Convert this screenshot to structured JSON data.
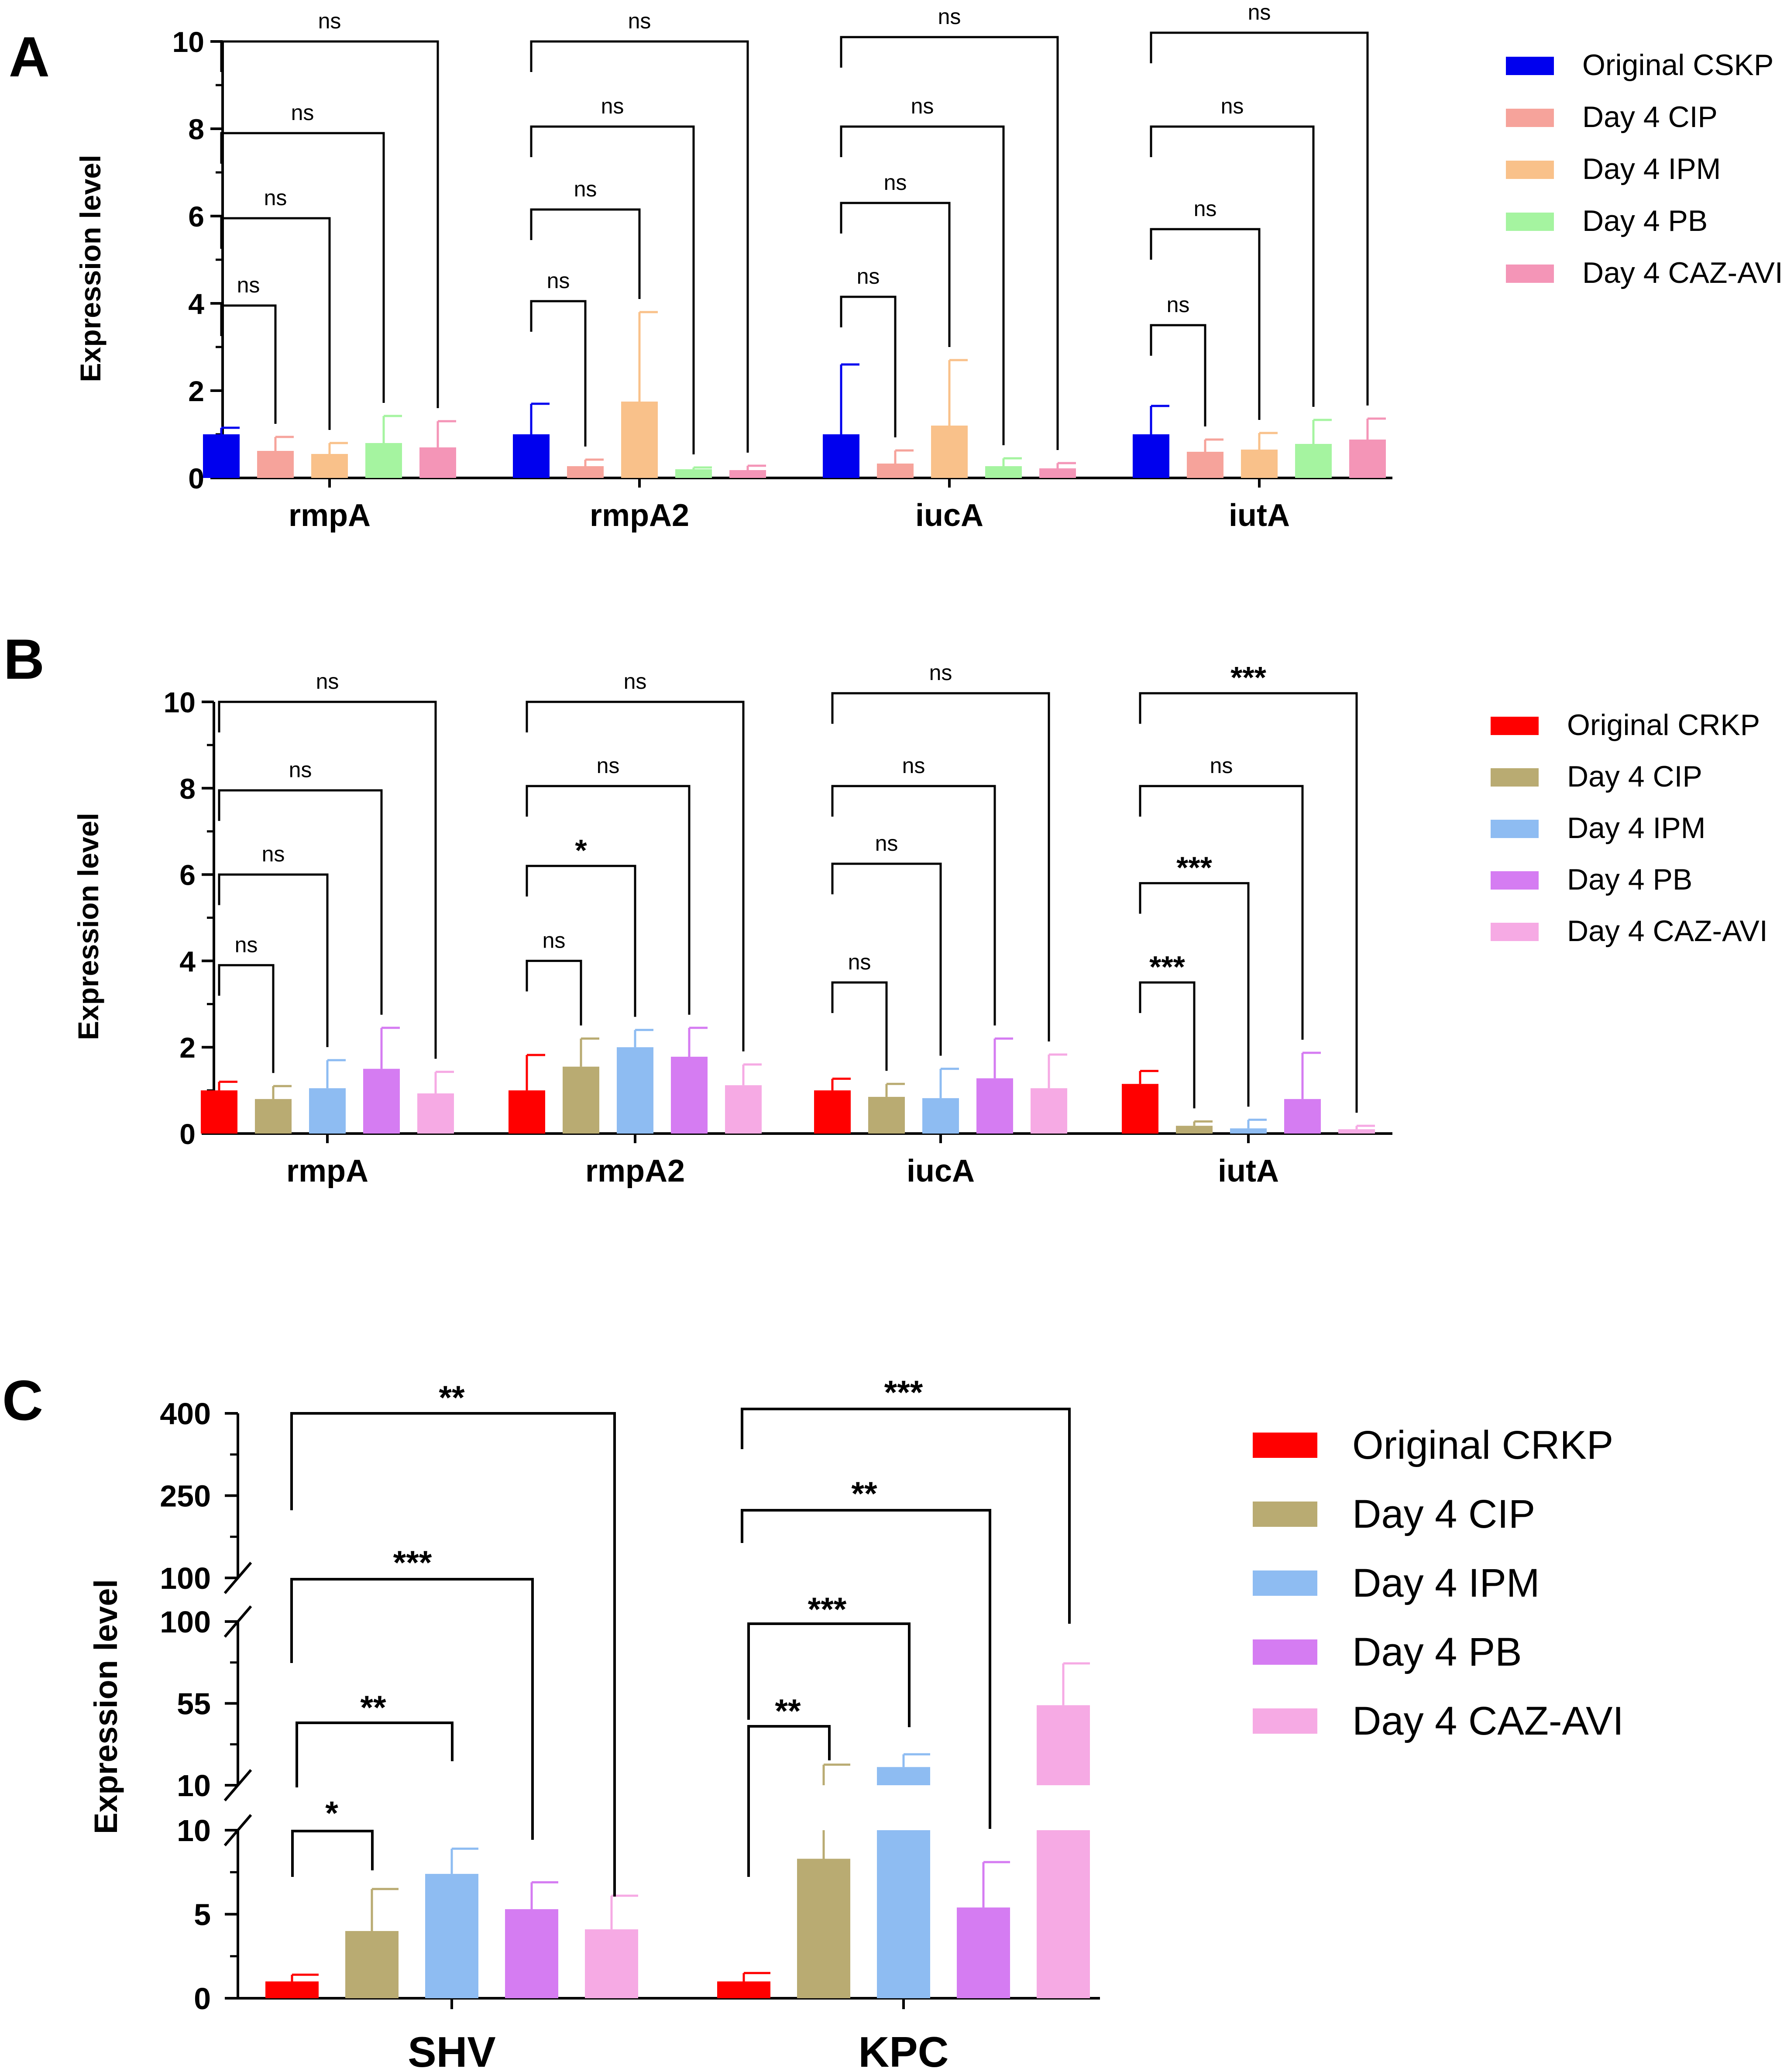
{
  "chart_data": [
    {
      "id": "A",
      "type": "bar",
      "panel_label": "A",
      "ylabel": "Expression level",
      "ylim": [
        0,
        10
      ],
      "yticks": [
        0,
        2,
        4,
        6,
        8,
        10
      ],
      "categories": [
        "rmpA",
        "rmpA2",
        "iucA",
        "iutA"
      ],
      "series": [
        {
          "name": "Original CSKP",
          "color": "#0000ee",
          "values": [
            1.0,
            1.0,
            1.0,
            1.0
          ],
          "errors": [
            0.15,
            0.7,
            1.6,
            0.65
          ]
        },
        {
          "name": "Day 4 CIP",
          "color": "#f6a39b",
          "values": [
            0.62,
            0.27,
            0.33,
            0.6
          ],
          "errors": [
            0.32,
            0.15,
            0.3,
            0.28
          ]
        },
        {
          "name": "Day 4 IPM",
          "color": "#f9c18a",
          "values": [
            0.55,
            1.75,
            1.2,
            0.65
          ],
          "errors": [
            0.25,
            2.05,
            1.5,
            0.38
          ]
        },
        {
          "name": "Day 4 PB",
          "color": "#a5f4a0",
          "values": [
            0.8,
            0.2,
            0.27,
            0.78
          ],
          "errors": [
            0.62,
            0.04,
            0.18,
            0.55
          ]
        },
        {
          "name": "Day 4 CAZ-AVI",
          "color": "#f495b7",
          "values": [
            0.7,
            0.18,
            0.22,
            0.88
          ],
          "errors": [
            0.6,
            0.1,
            0.12,
            0.48
          ]
        }
      ],
      "significance": [
        [
          {
            "label": "ns",
            "level": 3.95
          },
          {
            "label": "ns",
            "level": 5.95
          },
          {
            "label": "ns",
            "level": 7.9
          },
          {
            "label": "ns",
            "level": 10.0
          }
        ],
        [
          {
            "label": "ns",
            "level": 4.05
          },
          {
            "label": "ns",
            "level": 6.15
          },
          {
            "label": "ns",
            "level": 8.05
          },
          {
            "label": "ns",
            "level": 10.0
          }
        ],
        [
          {
            "label": "ns",
            "level": 4.15
          },
          {
            "label": "ns",
            "level": 6.3
          },
          {
            "label": "ns",
            "level": 8.05
          },
          {
            "label": "ns",
            "level": 10.1
          }
        ],
        [
          {
            "label": "ns",
            "level": 3.5
          },
          {
            "label": "ns",
            "level": 5.7
          },
          {
            "label": "ns",
            "level": 8.05
          },
          {
            "label": "ns",
            "level": 10.2
          }
        ]
      ]
    },
    {
      "id": "B",
      "type": "bar",
      "panel_label": "B",
      "ylabel": "Expression level",
      "ylim": [
        0,
        10
      ],
      "yticks": [
        0,
        2,
        4,
        6,
        8,
        10
      ],
      "categories": [
        "rmpA",
        "rmpA2",
        "iucA",
        "iutA"
      ],
      "series": [
        {
          "name": "Original CRKP",
          "color": "#ff0000",
          "values": [
            1.0,
            1.0,
            1.0,
            1.15
          ],
          "errors": [
            0.2,
            0.82,
            0.27,
            0.3
          ]
        },
        {
          "name": "Day 4 CIP",
          "color": "#b9ab72",
          "values": [
            0.8,
            1.55,
            0.85,
            0.18
          ],
          "errors": [
            0.3,
            0.65,
            0.3,
            0.1
          ]
        },
        {
          "name": "Day 4 IPM",
          "color": "#8ebcf2",
          "values": [
            1.05,
            2.0,
            0.82,
            0.12
          ],
          "errors": [
            0.65,
            0.4,
            0.68,
            0.2
          ]
        },
        {
          "name": "Day 4 PB",
          "color": "#d57cf2",
          "values": [
            1.5,
            1.78,
            1.28,
            0.8
          ],
          "errors": [
            0.95,
            0.67,
            0.92,
            1.07
          ]
        },
        {
          "name": "Day 4 CAZ-AVI",
          "color": "#f6aae4",
          "values": [
            0.93,
            1.12,
            1.05,
            0.1
          ],
          "errors": [
            0.5,
            0.48,
            0.78,
            0.08
          ]
        }
      ],
      "significance": [
        [
          {
            "label": "ns",
            "level": 3.9
          },
          {
            "label": "ns",
            "level": 6.0
          },
          {
            "label": "ns",
            "level": 7.95
          },
          {
            "label": "ns",
            "level": 10.0
          }
        ],
        [
          {
            "label": "ns",
            "level": 4.0
          },
          {
            "label": "*",
            "level": 6.2
          },
          {
            "label": "ns",
            "level": 8.05
          },
          {
            "label": "ns",
            "level": 10.0
          }
        ],
        [
          {
            "label": "ns",
            "level": 3.5
          },
          {
            "label": "ns",
            "level": 6.25
          },
          {
            "label": "ns",
            "level": 8.05
          },
          {
            "label": "ns",
            "level": 10.2
          }
        ],
        [
          {
            "label": "***",
            "level": 3.5
          },
          {
            "label": "***",
            "level": 5.8
          },
          {
            "label": "ns",
            "level": 8.05
          },
          {
            "label": "***",
            "level": 10.2
          }
        ]
      ]
    },
    {
      "id": "C",
      "type": "bar",
      "panel_label": "C",
      "ylabel": "Expression level",
      "axis_breaks": true,
      "axis_segments": [
        [
          0,
          10
        ],
        [
          10,
          100
        ],
        [
          100,
          400
        ]
      ],
      "ytick_labels": [
        "0",
        "5",
        "10",
        "10",
        "55",
        "100",
        "100",
        "250",
        "400"
      ],
      "categories": [
        "SHV",
        "KPC"
      ],
      "series": [
        {
          "name": "Original CRKP",
          "color": "#ff0000",
          "values": [
            1.0,
            1.0
          ],
          "errors": [
            0.4,
            0.5
          ]
        },
        {
          "name": "Day 4 CIP",
          "color": "#b9ab72",
          "values": [
            4.0,
            8.3
          ],
          "errors": [
            2.5,
            13.0
          ]
        },
        {
          "name": "Day 4 IPM",
          "color": "#8ebcf2",
          "values": [
            7.4,
            20.0
          ],
          "errors": [
            1.5,
            7.0
          ]
        },
        {
          "name": "Day 4 PB",
          "color": "#d57cf2",
          "values": [
            5.3,
            5.4
          ],
          "errors": [
            1.6,
            2.7
          ]
        },
        {
          "name": "Day 4 CAZ-AVI",
          "color": "#f6aae4",
          "values": [
            4.1,
            54.0
          ],
          "errors": [
            2.0,
            23.0
          ]
        }
      ],
      "significance": [
        [
          {
            "label": "*"
          },
          {
            "label": "**"
          },
          {
            "label": "***"
          },
          {
            "label": "**"
          }
        ],
        [
          {
            "label": "**"
          },
          {
            "label": "***"
          },
          {
            "label": "**"
          },
          {
            "label": "***"
          }
        ]
      ]
    }
  ]
}
